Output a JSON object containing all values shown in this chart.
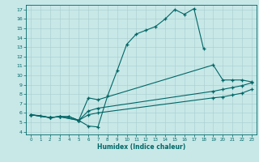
{
  "xlabel": "Humidex (Indice chaleur)",
  "bg_color": "#c8e8e8",
  "grid_color": "#a8cccc",
  "line_color": "#006666",
  "xlim": [
    0,
    23
  ],
  "ylim": [
    4,
    17
  ],
  "xticks": [
    0,
    1,
    2,
    3,
    4,
    5,
    6,
    7,
    8,
    9,
    10,
    11,
    12,
    13,
    14,
    15,
    16,
    17,
    18,
    19,
    20,
    21,
    22,
    23
  ],
  "yticks": [
    4,
    5,
    6,
    7,
    8,
    9,
    10,
    11,
    12,
    13,
    14,
    15,
    16,
    17
  ],
  "lines": [
    {
      "x": [
        0,
        1,
        2,
        3,
        4,
        5,
        6,
        7,
        8,
        9,
        10,
        11,
        12,
        13,
        14,
        15,
        16,
        17,
        18
      ],
      "y": [
        5.8,
        5.7,
        5.5,
        5.6,
        5.6,
        5.2,
        4.6,
        4.5,
        7.8,
        10.5,
        13.3,
        14.4,
        14.8,
        15.2,
        16.0,
        17.0,
        16.5,
        17.1,
        12.8
      ]
    },
    {
      "x": [
        0,
        2,
        3,
        4,
        5,
        6,
        7,
        19,
        20,
        21,
        22,
        23
      ],
      "y": [
        5.8,
        5.5,
        5.6,
        5.6,
        5.2,
        7.6,
        7.4,
        11.1,
        9.5,
        9.5,
        9.5,
        9.3
      ]
    },
    {
      "x": [
        0,
        2,
        3,
        5,
        6,
        7,
        19,
        20,
        21,
        22,
        23
      ],
      "y": [
        5.8,
        5.5,
        5.6,
        5.2,
        6.2,
        6.5,
        8.3,
        8.5,
        8.7,
        8.9,
        9.2
      ]
    },
    {
      "x": [
        0,
        2,
        3,
        5,
        6,
        7,
        19,
        20,
        21,
        22,
        23
      ],
      "y": [
        5.8,
        5.5,
        5.6,
        5.2,
        5.8,
        6.0,
        7.6,
        7.7,
        7.9,
        8.1,
        8.5
      ]
    }
  ]
}
